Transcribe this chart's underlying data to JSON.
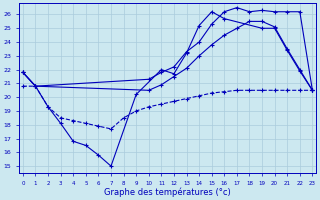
{
  "title": "Graphe des températures (°c)",
  "bg_color": "#cce8f0",
  "line_color": "#0000bb",
  "grid_color": "#aaccdd",
  "x_ticks": [
    0,
    1,
    2,
    3,
    4,
    5,
    6,
    7,
    8,
    9,
    10,
    11,
    12,
    13,
    14,
    15,
    16,
    17,
    18,
    19,
    20,
    21,
    22,
    23
  ],
  "y_ticks": [
    15,
    16,
    17,
    18,
    19,
    20,
    21,
    22,
    23,
    24,
    25,
    26
  ],
  "ylim": [
    14.5,
    26.8
  ],
  "xlim": [
    -0.3,
    23.3
  ],
  "series": [
    {
      "x": [
        0,
        1,
        2,
        3,
        4,
        5,
        6,
        7,
        9,
        11,
        12,
        13,
        14,
        15,
        16,
        19,
        20,
        21,
        22,
        23
      ],
      "y": [
        21.8,
        20.8,
        19.3,
        18.1,
        16.8,
        16.5,
        15.8,
        15.0,
        20.2,
        22.0,
        21.7,
        23.2,
        25.2,
        26.2,
        25.7,
        25.0,
        25.0,
        23.4,
        21.9,
        20.5
      ],
      "style": "-",
      "marker": "+"
    },
    {
      "x": [
        0,
        1,
        10,
        11,
        12,
        13,
        14,
        15,
        16,
        17,
        18,
        19,
        20,
        21,
        22,
        23
      ],
      "y": [
        21.8,
        20.8,
        21.3,
        21.8,
        22.2,
        23.3,
        24.0,
        25.3,
        26.2,
        26.5,
        26.2,
        26.3,
        26.2,
        26.2,
        26.2,
        20.5
      ],
      "style": "-",
      "marker": "+"
    },
    {
      "x": [
        0,
        1,
        10,
        11,
        12,
        13,
        14,
        15,
        16,
        17,
        18,
        19,
        20,
        21,
        22,
        23
      ],
      "y": [
        21.8,
        20.8,
        20.5,
        20.9,
        21.5,
        22.1,
        23.0,
        23.8,
        24.5,
        25.0,
        25.5,
        25.5,
        25.1,
        23.5,
        22.0,
        20.5
      ],
      "style": "-",
      "marker": "+"
    },
    {
      "x": [
        0,
        1,
        2,
        3,
        4,
        5,
        6,
        7,
        8,
        9,
        10,
        11,
        12,
        13,
        14,
        15,
        16,
        17,
        18,
        19,
        20,
        21,
        22,
        23
      ],
      "y": [
        20.8,
        20.8,
        19.3,
        18.5,
        18.3,
        18.1,
        17.9,
        17.7,
        18.5,
        19.0,
        19.3,
        19.5,
        19.7,
        19.9,
        20.1,
        20.3,
        20.4,
        20.5,
        20.5,
        20.5,
        20.5,
        20.5,
        20.5,
        20.5
      ],
      "style": "--",
      "marker": "+"
    }
  ]
}
